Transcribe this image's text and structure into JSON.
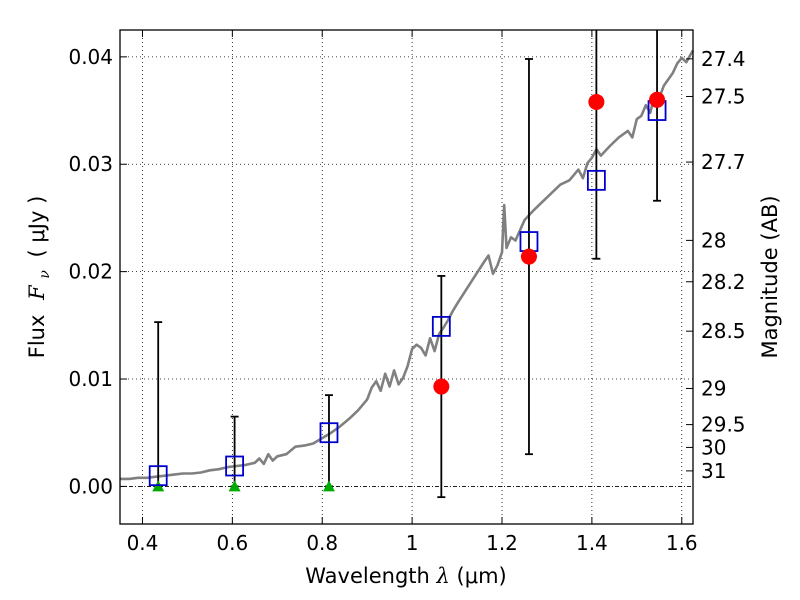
{
  "chart_data": {
    "type": "scatter",
    "xlabel": {
      "prefix": "Wavelength",
      "symbol": "λ",
      "unit": "(μm)"
    },
    "ylabel": {
      "prefix": "Flux",
      "symbol": "F",
      "subscript": "ν",
      "unit": "( μJy )"
    },
    "y2label": "Magnitude (AB)",
    "xlim": [
      0.35,
      1.625
    ],
    "ylim": [
      -0.0035,
      0.0425
    ],
    "grid": true,
    "x_ticks": [
      {
        "value": 0.4,
        "label": "0.4"
      },
      {
        "value": 0.6,
        "label": "0.6"
      },
      {
        "value": 0.8,
        "label": "0.8"
      },
      {
        "value": 1.0,
        "label": "1"
      },
      {
        "value": 1.2,
        "label": "1.2"
      },
      {
        "value": 1.4,
        "label": "1.4"
      },
      {
        "value": 1.6,
        "label": "1.6"
      }
    ],
    "y_ticks": [
      {
        "value": 0.0,
        "label": "0.00"
      },
      {
        "value": 0.01,
        "label": "0.01"
      },
      {
        "value": 0.02,
        "label": "0.02"
      },
      {
        "value": 0.03,
        "label": "0.03"
      },
      {
        "value": 0.04,
        "label": "0.04"
      }
    ],
    "magnitude_ticks": [
      {
        "value": 27.4,
        "label": "27.4"
      },
      {
        "value": 27.5,
        "label": "27.5"
      },
      {
        "value": 27.7,
        "label": "27.7"
      },
      {
        "value": 28.0,
        "label": "28"
      },
      {
        "value": 28.2,
        "label": "28.2"
      },
      {
        "value": 28.5,
        "label": "28.5"
      },
      {
        "value": 29.0,
        "label": "29"
      },
      {
        "value": 29.5,
        "label": "29.5"
      },
      {
        "value": 30.0,
        "label": "30"
      },
      {
        "value": 31.0,
        "label": "31"
      }
    ],
    "template_spectrum": {
      "color": "#808080",
      "x": [
        0.35,
        0.37,
        0.39,
        0.41,
        0.43,
        0.45,
        0.47,
        0.49,
        0.51,
        0.53,
        0.55,
        0.57,
        0.59,
        0.61,
        0.63,
        0.65,
        0.66,
        0.67,
        0.68,
        0.69,
        0.7,
        0.72,
        0.74,
        0.76,
        0.78,
        0.8,
        0.82,
        0.84,
        0.86,
        0.88,
        0.9,
        0.91,
        0.92,
        0.93,
        0.94,
        0.95,
        0.96,
        0.97,
        0.98,
        0.99,
        1.0,
        1.01,
        1.02,
        1.03,
        1.04,
        1.05,
        1.06,
        1.07,
        1.08,
        1.09,
        1.1,
        1.12,
        1.14,
        1.16,
        1.17,
        1.18,
        1.19,
        1.2,
        1.205,
        1.21,
        1.22,
        1.23,
        1.25,
        1.27,
        1.29,
        1.31,
        1.33,
        1.35,
        1.37,
        1.38,
        1.39,
        1.4,
        1.41,
        1.42,
        1.44,
        1.46,
        1.48,
        1.49,
        1.5,
        1.51,
        1.52,
        1.53,
        1.54,
        1.55,
        1.56,
        1.57,
        1.58,
        1.59,
        1.6,
        1.61,
        1.625
      ],
      "y": [
        0.0007,
        0.0007,
        0.0008,
        0.0008,
        0.0009,
        0.001,
        0.0011,
        0.0012,
        0.0012,
        0.0013,
        0.0015,
        0.0016,
        0.0018,
        0.0019,
        0.002,
        0.0022,
        0.0026,
        0.0021,
        0.003,
        0.0024,
        0.0028,
        0.003,
        0.0037,
        0.0038,
        0.004,
        0.0045,
        0.005,
        0.0056,
        0.0063,
        0.0071,
        0.0081,
        0.0092,
        0.0098,
        0.0089,
        0.0105,
        0.0093,
        0.0108,
        0.0095,
        0.0101,
        0.0112,
        0.0128,
        0.0132,
        0.0129,
        0.0122,
        0.0138,
        0.0126,
        0.0142,
        0.0148,
        0.0155,
        0.0163,
        0.017,
        0.0183,
        0.0196,
        0.0209,
        0.0215,
        0.0198,
        0.0206,
        0.0218,
        0.0262,
        0.0222,
        0.0232,
        0.0229,
        0.0248,
        0.0257,
        0.0265,
        0.0273,
        0.0281,
        0.0285,
        0.0295,
        0.0287,
        0.0301,
        0.0306,
        0.0314,
        0.0308,
        0.0317,
        0.0325,
        0.0331,
        0.0325,
        0.0342,
        0.0345,
        0.0355,
        0.0348,
        0.0366,
        0.0362,
        0.0373,
        0.0379,
        0.0385,
        0.0394,
        0.0399,
        0.0395,
        0.0406
      ]
    },
    "model_photometry": {
      "color": "#0000cc",
      "x": [
        0.435,
        0.605,
        0.815,
        1.065,
        1.26,
        1.41,
        1.545
      ],
      "y": [
        0.001,
        0.0019,
        0.005,
        0.0149,
        0.0228,
        0.0285,
        0.035
      ]
    },
    "detections": {
      "color": "#ff0000",
      "x": [
        1.065,
        1.26,
        1.41,
        1.545
      ],
      "y": [
        0.0093,
        0.0214,
        0.0358,
        0.036
      ],
      "y_low": [
        -0.001,
        0.003,
        0.0212,
        0.0266
      ],
      "y_high": [
        0.0196,
        0.0398,
        0.0425,
        0.0425
      ]
    },
    "upper_limits": {
      "color": "#00aa00",
      "x": [
        0.435,
        0.605,
        0.815
      ],
      "y": [
        0.0,
        0.0,
        0.0
      ],
      "y_low": [
        0.0,
        0.0,
        0.0
      ],
      "y_high": [
        0.0153,
        0.0065,
        0.0085
      ]
    }
  }
}
